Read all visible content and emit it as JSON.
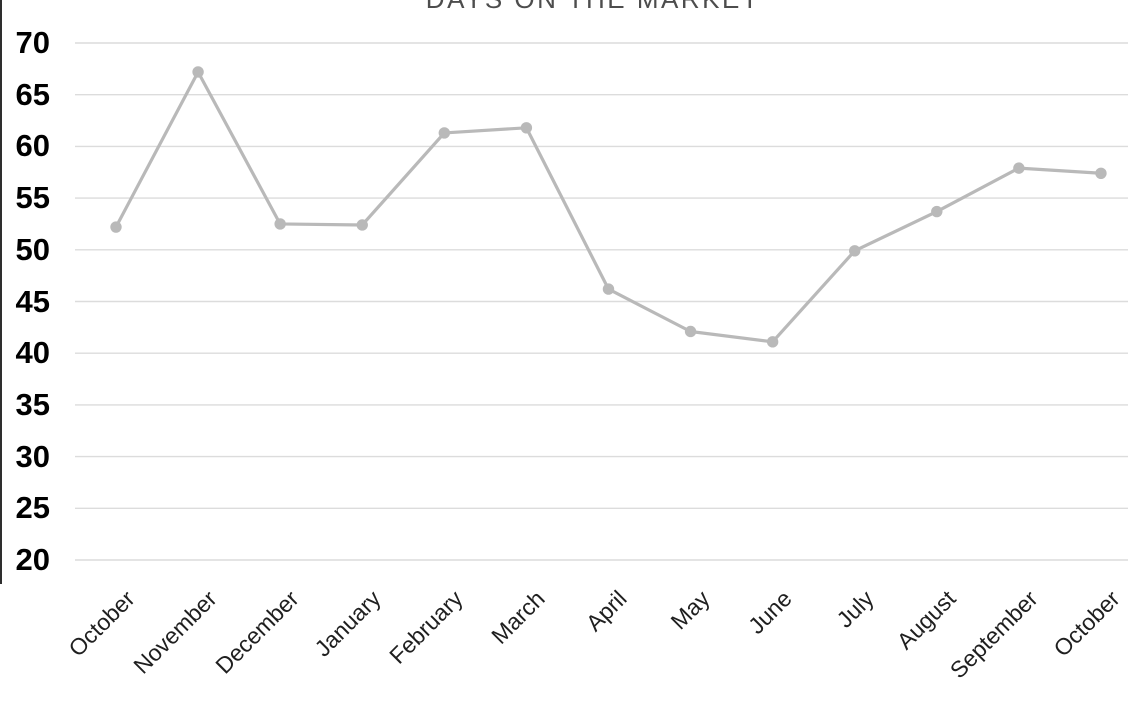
{
  "chart_data": {
    "type": "line",
    "title": "DAYS ON THE MARKET",
    "categories": [
      "October",
      "November",
      "December",
      "January",
      "February",
      "March",
      "April",
      "May",
      "June",
      "July",
      "August",
      "September",
      "October"
    ],
    "values": [
      52.2,
      67.2,
      52.5,
      52.4,
      61.3,
      61.8,
      46.2,
      42.1,
      41.1,
      49.9,
      53.7,
      57.9,
      57.4
    ],
    "ylim": [
      20,
      70
    ],
    "yticks": [
      70,
      65,
      60,
      55,
      50,
      45,
      40,
      35,
      30,
      25,
      20
    ],
    "xlabel": "",
    "ylabel": "",
    "grid": "horizontal",
    "legend": "none",
    "x_tick_rotation_deg": -45,
    "colors": {
      "line": "#b9b9b9",
      "marker": "#b9b9b9",
      "grid": "#dcdcdc",
      "y_tick_text": "#000000",
      "x_tick_text": "#1f1f1f",
      "title_text": "#4d4d4d"
    }
  }
}
